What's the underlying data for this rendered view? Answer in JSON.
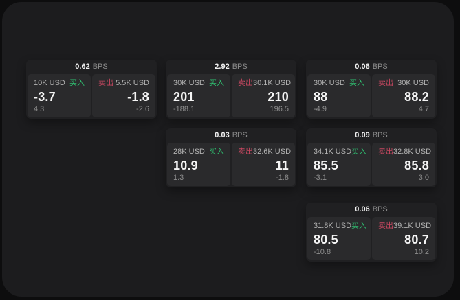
{
  "labels": {
    "bps": "BPS",
    "buy": "买入",
    "sell": "卖出"
  },
  "colors": {
    "outer_bg": "#0d0d0e",
    "window_bg": "#1c1c1e",
    "card_bg": "#202022",
    "panel_bg": "#2a2a2c",
    "buy_green": "#2fbe70",
    "sell_red": "#c64760",
    "value_white": "#f5f5f5",
    "muted_gray": "#8d8d8d"
  },
  "cards": [
    {
      "bps": "0.62",
      "buy": {
        "amount": "10K USD",
        "value": "-3.7",
        "sub": "4.3"
      },
      "sell": {
        "amount": "5.5K USD",
        "value": "-1.8",
        "sub": "-2.6"
      }
    },
    {
      "bps": "2.92",
      "buy": {
        "amount": "30K USD",
        "value": "201",
        "sub": "-188.1"
      },
      "sell": {
        "amount": "30.1K USD",
        "value": "210",
        "sub": "196.5"
      }
    },
    {
      "bps": "0.06",
      "buy": {
        "amount": "30K USD",
        "value": "88",
        "sub": "-4.9"
      },
      "sell": {
        "amount": "30K USD",
        "value": "88.2",
        "sub": "4.7"
      }
    },
    {
      "bps": "0.03",
      "buy": {
        "amount": "28K USD",
        "value": "10.9",
        "sub": "1.3"
      },
      "sell": {
        "amount": "32.6K USD",
        "value": "11",
        "sub": "-1.8"
      }
    },
    {
      "bps": "0.09",
      "buy": {
        "amount": "34.1K USD",
        "value": "85.5",
        "sub": "-3.1"
      },
      "sell": {
        "amount": "32.8K USD",
        "value": "85.8",
        "sub": "3.0"
      }
    },
    {
      "bps": "0.06",
      "buy": {
        "amount": "31.8K USD",
        "value": "80.5",
        "sub": "-10.8"
      },
      "sell": {
        "amount": "39.1K USD",
        "value": "80.7",
        "sub": "10.2"
      }
    }
  ]
}
